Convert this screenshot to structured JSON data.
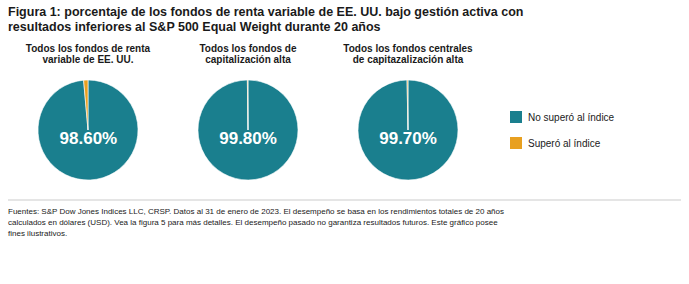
{
  "title": "Figura 1: porcentaje de los fondos de renta variable de EE. UU. bajo gestión activa con\nresultados inferiores al S&P 500 Equal Weight durante 20 años",
  "annotations": [
    "Fuentes: S&P Dow Jones Indices LLC, CRSP. Datos al 31 de enero de 2023. El desempeño se basa en los rendimientos totales de 20 años\ncalculados en dólares (USD). Vea la figura 5 para más detalles. El desempeño pasado no garantiza resultados futuros. Este gráfico posee\nfines ilustrativos."
  ],
  "chart_data": [
    {
      "type": "pie",
      "title": "Todos los fondos de renta\nvariable de EE. UU.",
      "categories": [
        "No superó al índice",
        "Superó al índice"
      ],
      "values": [
        98.6,
        1.4
      ],
      "value_labels": [
        "98.60%",
        null
      ],
      "colors": [
        "#1A7F8E",
        "#E8A020"
      ],
      "data_labels": true,
      "legend": "right"
    },
    {
      "type": "pie",
      "title": "Todos los fondos de\ncapitalización alta",
      "categories": [
        "No superó al índice",
        "Superó al índice"
      ],
      "values": [
        99.8,
        0.2
      ],
      "value_labels": [
        "99.80%",
        null
      ],
      "colors": [
        "#1A7F8E",
        "#E8A020"
      ],
      "data_labels": true
    },
    {
      "type": "pie",
      "title": "Todos los fondos centrales\nde capitazalización alta",
      "categories": [
        "No superó al índice",
        "Superó al índice"
      ],
      "values": [
        99.7,
        0.3
      ],
      "value_labels": [
        "99.70%",
        null
      ],
      "colors": [
        "#1A7F8E",
        "#E8A020"
      ],
      "data_labels": true
    }
  ]
}
